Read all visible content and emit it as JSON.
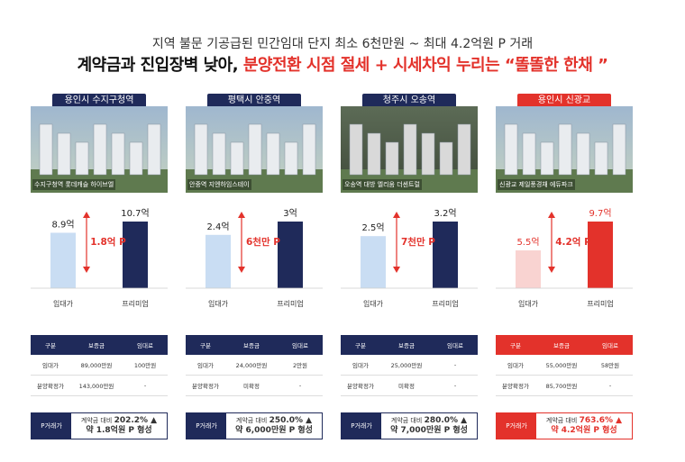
{
  "subtitle": "지역 불문 기공급된 민간임대 단지 최소 6천만원 ~ 최대 4.2억원 P 거래",
  "headline": {
    "part1": "계약금과 진입장벽 낮아, ",
    "part2": "분양전환 시점 절세 + 시세차익 누리는 “똘똘한 한채 ”"
  },
  "colors": {
    "navy": "#1f2a5a",
    "red": "#e3322b",
    "lightblue": "#c9ddf3",
    "pink": "#f9d3d1"
  },
  "table_headers": {
    "col1": "구분",
    "col2": "보증금",
    "col3": "임대료"
  },
  "row_labels": {
    "rent": "임대가",
    "sale": "분양확정가",
    "premium": "P거래가"
  },
  "cards": [
    {
      "tag": "용인시 수지구청역",
      "caption": "수지구청역 롯데캐슬 하이브엘",
      "rent_label": "8.9억",
      "prem_label": "10.7억",
      "diff": "1.8억 P",
      "rent_val": 8.9,
      "prem_val": 10.7,
      "x_label_rent": "임대가",
      "x_label_prem": "프리미엄",
      "rent_deposit": "89,000만원",
      "rent_fee": "100만원",
      "sale_deposit": "143,000만원",
      "sale_fee": "-",
      "pct_text": "계약금 대비",
      "pct": "202.2% ▲",
      "p_text": "약 1.8억원 P 형성"
    },
    {
      "tag": "평택시 안중역",
      "caption": "안중역 지엔하임스테이",
      "rent_label": "2.4억",
      "prem_label": "3억",
      "diff": "6천만 P",
      "rent_val": 2.4,
      "prem_val": 3.0,
      "x_label_rent": "임대가",
      "x_label_prem": "프리미엄",
      "rent_deposit": "24,000만원",
      "rent_fee": "2만원",
      "sale_deposit": "미확정",
      "sale_fee": "-",
      "pct_text": "계약금 대비",
      "pct": "250.0% ▲",
      "p_text": "약 6,000만원 P 형성"
    },
    {
      "tag": "청주시 오송역",
      "caption": "오송역 대방 엘리움 더센트럴",
      "rent_label": "2.5억",
      "prem_label": "3.2억",
      "diff": "7천만 P",
      "rent_val": 2.5,
      "prem_val": 3.2,
      "x_label_rent": "임대가",
      "x_label_prem": "프리미엄",
      "rent_deposit": "25,000만원",
      "rent_fee": "-",
      "sale_deposit": "미확정",
      "sale_fee": "-",
      "pct_text": "계약금 대비",
      "pct": "280.0% ▲",
      "p_text": "약 7,000만원 P 형성"
    },
    {
      "tag": "용인시 신광교",
      "caption": "신광교 제일풍경채 에듀파크",
      "rent_label": "5.5억",
      "prem_label": "9.7억",
      "diff": "4.2억 P",
      "rent_val": 5.5,
      "prem_val": 9.7,
      "x_label_rent": "임대가",
      "x_label_prem": "프리미엄",
      "rent_deposit": "55,000만원",
      "rent_fee": "58만원",
      "sale_deposit": "85,700만원",
      "sale_fee": "-",
      "pct_text": "계약금 대비",
      "pct": "763.6% ▲",
      "p_text": "약 4.2억원 P 형성"
    }
  ]
}
